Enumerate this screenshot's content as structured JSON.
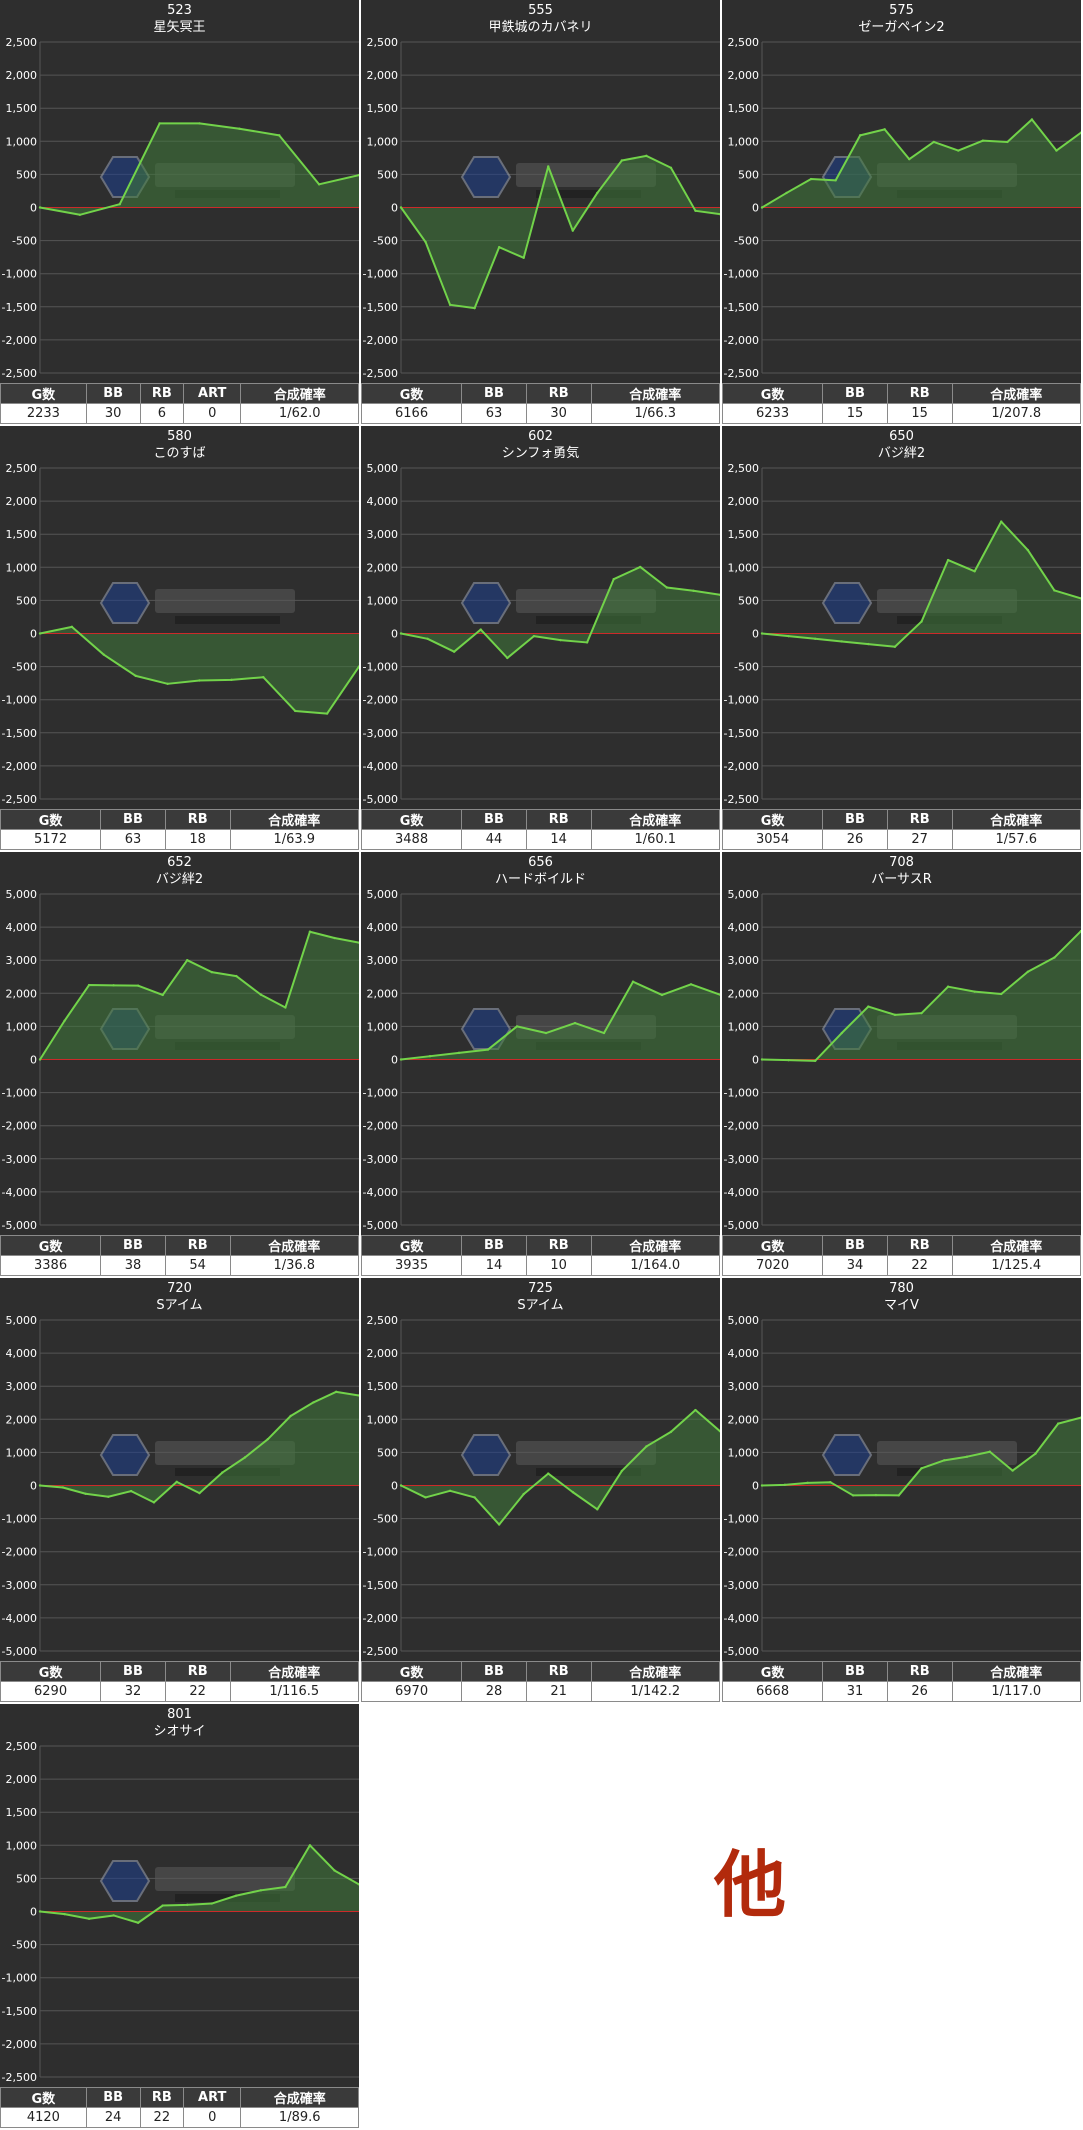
{
  "other_label": "他",
  "colors": {
    "background": "#2e2e2e",
    "grid": "#555555",
    "line": "#72d34a",
    "fill": "#3f7a3b",
    "zero": "#cc2a2a",
    "other": "#b22a0c"
  },
  "chart_data": [
    {
      "type": "area",
      "title": "523",
      "subtitle": "星矢冥王",
      "ylim": [
        -2500,
        2500
      ],
      "yticks": [
        "2,500",
        "2,000",
        "1,500",
        "1,000",
        "500",
        "0",
        "-500",
        "-1,000",
        "-1,500",
        "-2,000",
        "-2,500"
      ],
      "series": [
        {
          "values": [
            0,
            -110,
            50,
            1270,
            1270,
            1190,
            1090,
            350,
            490
          ]
        }
      ],
      "table": {
        "headers": [
          "G数",
          "BB",
          "RB",
          "ART",
          "合成確率"
        ],
        "values": [
          "2233",
          "30",
          "6",
          "0",
          "1/62.0"
        ]
      }
    },
    {
      "type": "area",
      "title": "555",
      "subtitle": "甲鉄城のカバネリ",
      "ylim": [
        -2500,
        2500
      ],
      "yticks": [
        "2,500",
        "2,000",
        "1,500",
        "1,000",
        "500",
        "0",
        "-500",
        "-1,000",
        "-1,500",
        "-2,000",
        "-2,500"
      ],
      "series": [
        {
          "values": [
            0,
            -520,
            -1470,
            -1520,
            -600,
            -760,
            620,
            -350,
            220,
            710,
            780,
            600,
            -50,
            -100
          ]
        }
      ],
      "table": {
        "headers": [
          "G数",
          "BB",
          "RB",
          "合成確率"
        ],
        "values": [
          "6166",
          "63",
          "30",
          "1/66.3"
        ]
      }
    },
    {
      "type": "area",
      "title": "575",
      "subtitle": "ゼーガペイン2",
      "ylim": [
        -2500,
        2500
      ],
      "yticks": [
        "2,500",
        "2,000",
        "1,500",
        "1,000",
        "500",
        "0",
        "-500",
        "-1,000",
        "-1,500",
        "-2,000",
        "-2,500"
      ],
      "series": [
        {
          "values": [
            0,
            220,
            430,
            410,
            1090,
            1180,
            730,
            990,
            860,
            1010,
            990,
            1330,
            860,
            1130
          ]
        }
      ],
      "table": {
        "headers": [
          "G数",
          "BB",
          "RB",
          "合成確率"
        ],
        "values": [
          "6233",
          "15",
          "15",
          "1/207.8"
        ]
      }
    },
    {
      "type": "area",
      "title": "580",
      "subtitle": "このすば",
      "ylim": [
        -2500,
        2500
      ],
      "yticks": [
        "2,500",
        "2,000",
        "1,500",
        "1,000",
        "500",
        "0",
        "-500",
        "-1,000",
        "-1,500",
        "-2,000",
        "-2,500"
      ],
      "series": [
        {
          "values": [
            0,
            100,
            -320,
            -640,
            -760,
            -710,
            -700,
            -660,
            -1170,
            -1210,
            -500
          ]
        }
      ],
      "table": {
        "headers": [
          "G数",
          "BB",
          "RB",
          "合成確率"
        ],
        "values": [
          "5172",
          "63",
          "18",
          "1/63.9"
        ]
      }
    },
    {
      "type": "area",
      "title": "602",
      "subtitle": "シンフォ勇気",
      "ylim": [
        -5000,
        5000
      ],
      "yticks": [
        "5,000",
        "4,000",
        "3,000",
        "2,000",
        "1,000",
        "0",
        "-1,000",
        "-2,000",
        "-3,000",
        "-4,000",
        "-5,000"
      ],
      "series": [
        {
          "values": [
            0,
            -160,
            -550,
            120,
            -740,
            -80,
            -200,
            -270,
            1640,
            2010,
            1390,
            1290,
            1170
          ]
        }
      ],
      "table": {
        "headers": [
          "G数",
          "BB",
          "RB",
          "合成確率"
        ],
        "values": [
          "3488",
          "44",
          "14",
          "1/60.1"
        ]
      }
    },
    {
      "type": "area",
      "title": "650",
      "subtitle": "バジ絆2",
      "ylim": [
        -2500,
        2500
      ],
      "yticks": [
        "2,500",
        "2,000",
        "1,500",
        "1,000",
        "500",
        "0",
        "-500",
        "-1,000",
        "-1,500",
        "-2,000",
        "-2,500"
      ],
      "series": [
        {
          "values": [
            0,
            -40,
            -80,
            -120,
            -160,
            -200,
            180,
            1110,
            940,
            1690,
            1260,
            650,
            530
          ]
        }
      ],
      "table": {
        "headers": [
          "G数",
          "BB",
          "RB",
          "合成確率"
        ],
        "values": [
          "3054",
          "26",
          "27",
          "1/57.6"
        ]
      }
    },
    {
      "type": "area",
      "title": "652",
      "subtitle": "バジ絆2",
      "ylim": [
        -5000,
        5000
      ],
      "yticks": [
        "5,000",
        "4,000",
        "3,000",
        "2,000",
        "1,000",
        "0",
        "-1,000",
        "-2,000",
        "-3,000",
        "-4,000",
        "-5,000"
      ],
      "series": [
        {
          "values": [
            0,
            1170,
            2250,
            2240,
            2230,
            1950,
            3000,
            2640,
            2520,
            1960,
            1570,
            3860,
            3670,
            3530
          ]
        }
      ],
      "table": {
        "headers": [
          "G数",
          "BB",
          "RB",
          "合成確率"
        ],
        "values": [
          "3386",
          "38",
          "54",
          "1/36.8"
        ]
      }
    },
    {
      "type": "area",
      "title": "656",
      "subtitle": "ハードボイルド",
      "ylim": [
        -5000,
        5000
      ],
      "yticks": [
        "5,000",
        "4,000",
        "3,000",
        "2,000",
        "1,000",
        "0",
        "-1,000",
        "-2,000",
        "-3,000",
        "-4,000",
        "-5,000"
      ],
      "series": [
        {
          "values": [
            0,
            100,
            200,
            300,
            1000,
            800,
            1100,
            800,
            2350,
            1950,
            2270,
            1960
          ]
        }
      ],
      "table": {
        "headers": [
          "G数",
          "BB",
          "RB",
          "合成確率"
        ],
        "values": [
          "3935",
          "14",
          "10",
          "1/164.0"
        ]
      }
    },
    {
      "type": "area",
      "title": "708",
      "subtitle": "バーサスR",
      "ylim": [
        -5000,
        5000
      ],
      "yticks": [
        "5,000",
        "4,000",
        "3,000",
        "2,000",
        "1,000",
        "0",
        "-1,000",
        "-2,000",
        "-3,000",
        "-4,000",
        "-5,000"
      ],
      "series": [
        {
          "values": [
            0,
            -20,
            -40,
            800,
            1600,
            1350,
            1400,
            2200,
            2050,
            1980,
            2650,
            3080,
            3880
          ]
        }
      ],
      "table": {
        "headers": [
          "G数",
          "BB",
          "RB",
          "合成確率"
        ],
        "values": [
          "7020",
          "34",
          "22",
          "1/125.4"
        ]
      }
    },
    {
      "type": "area",
      "title": "720",
      "subtitle": "Sアイム",
      "ylim": [
        -5000,
        5000
      ],
      "yticks": [
        "5,000",
        "4,000",
        "3,000",
        "2,000",
        "1,000",
        "0",
        "-1,000",
        "-2,000",
        "-3,000",
        "-4,000",
        "-5,000"
      ],
      "series": [
        {
          "values": [
            0,
            -60,
            -250,
            -340,
            -170,
            -510,
            110,
            -230,
            390,
            850,
            1400,
            2100,
            2510,
            2830,
            2720
          ]
        }
      ],
      "table": {
        "headers": [
          "G数",
          "BB",
          "RB",
          "合成確率"
        ],
        "values": [
          "6290",
          "32",
          "22",
          "1/116.5"
        ]
      }
    },
    {
      "type": "area",
      "title": "725",
      "subtitle": "Sアイム",
      "ylim": [
        -2500,
        2500
      ],
      "yticks": [
        "2,500",
        "2,000",
        "1,500",
        "1,000",
        "500",
        "0",
        "-500",
        "-1,000",
        "-1,500",
        "-2,000",
        "-2,500"
      ],
      "series": [
        {
          "values": [
            0,
            -180,
            -80,
            -180,
            -590,
            -130,
            180,
            -100,
            -360,
            220,
            590,
            810,
            1140,
            820
          ]
        }
      ],
      "table": {
        "headers": [
          "G数",
          "BB",
          "RB",
          "合成確率"
        ],
        "values": [
          "6970",
          "28",
          "21",
          "1/142.2"
        ]
      }
    },
    {
      "type": "area",
      "title": "780",
      "subtitle": "マイV",
      "ylim": [
        -5000,
        5000
      ],
      "yticks": [
        "5,000",
        "4,000",
        "3,000",
        "2,000",
        "1,000",
        "0",
        "-1,000",
        "-2,000",
        "-3,000",
        "-4,000",
        "-5,000"
      ],
      "series": [
        {
          "values": [
            0,
            20,
            80,
            100,
            -300,
            -290,
            -300,
            520,
            760,
            870,
            1020,
            450,
            960,
            1870,
            2050
          ]
        }
      ],
      "table": {
        "headers": [
          "G数",
          "BB",
          "RB",
          "合成確率"
        ],
        "values": [
          "6668",
          "31",
          "26",
          "1/117.0"
        ]
      }
    },
    {
      "type": "area",
      "title": "801",
      "subtitle": "シオサイ",
      "ylim": [
        -2500,
        2500
      ],
      "yticks": [
        "2,500",
        "2,000",
        "1,500",
        "1,000",
        "500",
        "0",
        "-500",
        "-1,000",
        "-1,500",
        "-2,000",
        "-2,500"
      ],
      "series": [
        {
          "values": [
            0,
            -40,
            -110,
            -60,
            -170,
            90,
            100,
            120,
            240,
            320,
            370,
            1000,
            620,
            410
          ]
        }
      ],
      "table": {
        "headers": [
          "G数",
          "BB",
          "RB",
          "ART",
          "合成確率"
        ],
        "values": [
          "4120",
          "24",
          "22",
          "0",
          "1/89.6"
        ]
      }
    }
  ]
}
